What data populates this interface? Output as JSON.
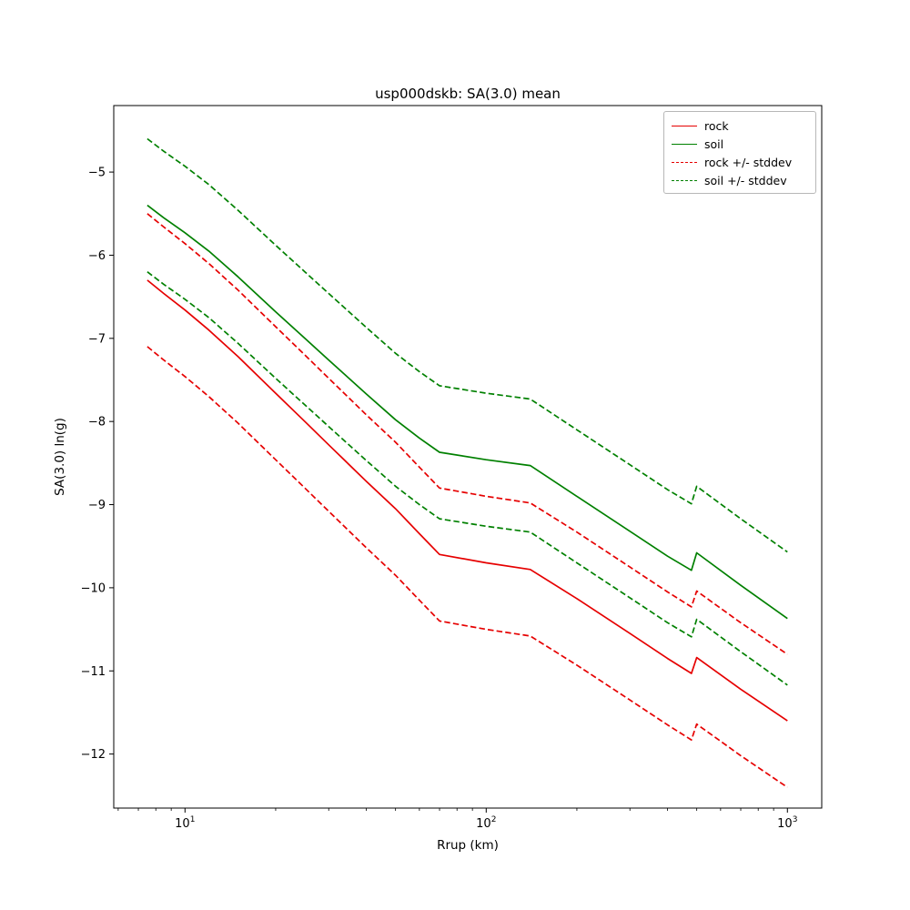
{
  "chart_data": {
    "type": "line",
    "title": "usp000dskb: SA(3.0) mean",
    "xlabel": "Rrup (km)",
    "ylabel": "SA(3.0) ln(g)",
    "x_scale": "log",
    "y_scale": "linear",
    "grid": false,
    "xlim": [
      5.8,
      1300
    ],
    "ylim": [
      -12.65,
      -4.2
    ],
    "background": "#ffffff",
    "x": [
      7.5,
      8.5,
      10,
      12,
      15,
      20,
      25,
      30,
      40,
      50,
      60,
      70,
      100,
      140,
      200,
      300,
      400,
      480,
      500,
      700,
      1000
    ],
    "series": [
      {
        "name": "rock",
        "color": "#e60000",
        "style": "solid",
        "values": [
          -6.3,
          -6.46,
          -6.66,
          -6.9,
          -7.22,
          -7.66,
          -8.0,
          -8.28,
          -8.72,
          -9.05,
          -9.35,
          -9.6,
          -9.7,
          -9.78,
          -10.13,
          -10.55,
          -10.85,
          -11.03,
          -10.84,
          -11.22,
          -11.6
        ]
      },
      {
        "name": "soil",
        "color": "#008000",
        "style": "solid",
        "values": [
          -5.4,
          -5.55,
          -5.73,
          -5.95,
          -6.26,
          -6.68,
          -7.0,
          -7.26,
          -7.67,
          -7.98,
          -8.2,
          -8.37,
          -8.46,
          -8.53,
          -8.9,
          -9.32,
          -9.62,
          -9.79,
          -9.58,
          -9.97,
          -10.37
        ]
      },
      {
        "name": "rock + stddev",
        "color": "#e60000",
        "style": "dashed",
        "values": [
          -5.5,
          -5.66,
          -5.86,
          -6.1,
          -6.42,
          -6.86,
          -7.2,
          -7.48,
          -7.92,
          -8.25,
          -8.55,
          -8.8,
          -8.9,
          -8.98,
          -9.33,
          -9.75,
          -10.05,
          -10.23,
          -10.04,
          -10.42,
          -10.8
        ]
      },
      {
        "name": "rock - stddev",
        "color": "#e60000",
        "style": "dashed",
        "values": [
          -7.1,
          -7.26,
          -7.46,
          -7.7,
          -8.02,
          -8.46,
          -8.8,
          -9.08,
          -9.52,
          -9.85,
          -10.15,
          -10.4,
          -10.5,
          -10.58,
          -10.93,
          -11.35,
          -11.65,
          -11.83,
          -11.64,
          -12.02,
          -12.4
        ]
      },
      {
        "name": "soil + stddev",
        "color": "#008000",
        "style": "dashed",
        "values": [
          -4.6,
          -4.75,
          -4.93,
          -5.15,
          -5.46,
          -5.88,
          -6.2,
          -6.46,
          -6.87,
          -7.18,
          -7.4,
          -7.57,
          -7.66,
          -7.73,
          -8.1,
          -8.52,
          -8.82,
          -8.99,
          -8.78,
          -9.17,
          -9.57
        ]
      },
      {
        "name": "soil - stddev",
        "color": "#008000",
        "style": "dashed",
        "values": [
          -6.2,
          -6.35,
          -6.53,
          -6.75,
          -7.06,
          -7.48,
          -7.8,
          -8.06,
          -8.47,
          -8.78,
          -9.0,
          -9.17,
          -9.26,
          -9.33,
          -9.7,
          -10.12,
          -10.42,
          -10.59,
          -10.38,
          -10.77,
          -11.17
        ]
      }
    ],
    "legend": {
      "location": "upper right",
      "entries": [
        {
          "label": "rock",
          "color": "#e60000",
          "dashed": false
        },
        {
          "label": "soil",
          "color": "#008000",
          "dashed": false
        },
        {
          "label": "rock +/- stddev",
          "color": "#e60000",
          "dashed": true
        },
        {
          "label": "soil +/- stddev",
          "color": "#008000",
          "dashed": true
        }
      ]
    },
    "x_ticks": [
      {
        "value": 10,
        "base": "10",
        "exp": "1"
      },
      {
        "value": 100,
        "base": "10",
        "exp": "2"
      },
      {
        "value": 1000,
        "base": "10",
        "exp": "3"
      }
    ],
    "x_minor_ticks": [
      6,
      7,
      8,
      9,
      20,
      30,
      40,
      50,
      60,
      70,
      80,
      90,
      200,
      300,
      400,
      500,
      600,
      700,
      800,
      900
    ],
    "y_ticks": [
      {
        "value": -5,
        "label": "−5"
      },
      {
        "value": -6,
        "label": "−6"
      },
      {
        "value": -7,
        "label": "−7"
      },
      {
        "value": -8,
        "label": "−8"
      },
      {
        "value": -9,
        "label": "−9"
      },
      {
        "value": -10,
        "label": "−10"
      },
      {
        "value": -11,
        "label": "−11"
      },
      {
        "value": -12,
        "label": "−12"
      }
    ]
  }
}
